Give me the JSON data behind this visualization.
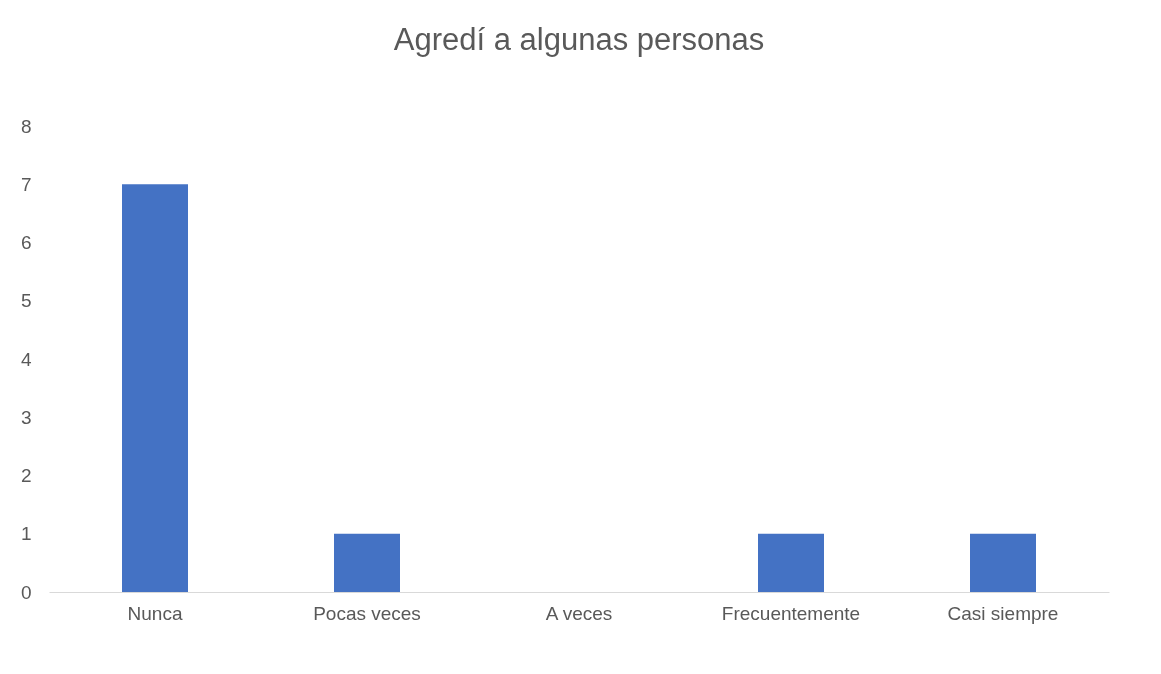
{
  "chart_data": {
    "type": "bar",
    "title": "Agredí a algunas personas",
    "categories": [
      "Nunca",
      "Pocas veces",
      "A veces",
      "Frecuentemente",
      "Casi siempre"
    ],
    "values": [
      7,
      1,
      0,
      1,
      1
    ],
    "color": "#4472c4",
    "ylim": [
      0,
      8
    ],
    "yticks": [
      0,
      1,
      2,
      3,
      4,
      5,
      6,
      7,
      8
    ],
    "grid": false,
    "legend": false
  }
}
